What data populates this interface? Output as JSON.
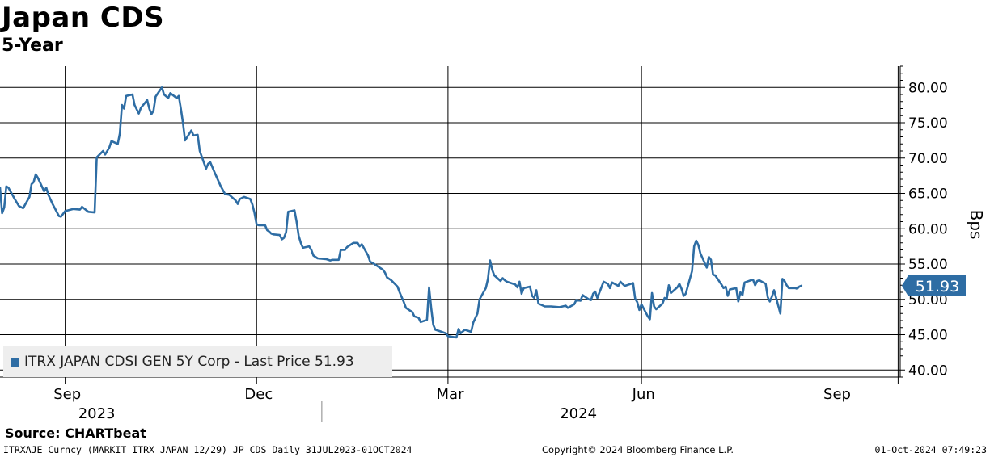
{
  "chart_data": {
    "type": "line",
    "title": "Japan CDS",
    "subtitle": "5-Year",
    "ylabel": "Bps",
    "ylim": [
      39,
      83
    ],
    "yticks": [
      40,
      45,
      50,
      55,
      60,
      65,
      70,
      75,
      80
    ],
    "ytick_labels": [
      "40.00",
      "45.00",
      "50.00",
      "55.00",
      "60.00",
      "65.00",
      "70.00",
      "75.00",
      "80.00"
    ],
    "xlim": [
      "2023-07-31",
      "2024-10-01"
    ],
    "month_ticks": [
      {
        "label": "Sep",
        "date": "2023-09-01"
      },
      {
        "label": "Dec",
        "date": "2023-12-01"
      },
      {
        "label": "Mar",
        "date": "2024-03-01"
      },
      {
        "label": "Jun",
        "date": "2024-06-01"
      },
      {
        "label": "Sep",
        "date": "2024-09-01"
      }
    ],
    "vertical_gridlines": [
      "2023-08-31",
      "2023-11-30",
      "2024-02-29",
      "2024-05-31",
      "2024-09-30"
    ],
    "year_labels": [
      {
        "label": "2023",
        "date": "2023-09-15"
      },
      {
        "label": "2024",
        "date": "2024-05-01"
      }
    ],
    "year_divider": "2023-12-31",
    "grid": true,
    "legend_position": "bottom-left",
    "last_value_label": "51.93",
    "last_value": 51.93,
    "series": [
      {
        "name": "ITRX JAPAN CDSI GEN 5Y Corp - Last Price 51.93",
        "color": "#2e6da4",
        "points": [
          [
            "2023-07-31",
            65.8
          ],
          [
            "2023-08-01",
            62.2
          ],
          [
            "2023-08-02",
            63.0
          ],
          [
            "2023-08-03",
            66.0
          ],
          [
            "2023-08-04",
            65.8
          ],
          [
            "2023-08-07",
            64.2
          ],
          [
            "2023-08-09",
            63.2
          ],
          [
            "2023-08-11",
            62.9
          ],
          [
            "2023-08-14",
            64.5
          ],
          [
            "2023-08-15",
            66.3
          ],
          [
            "2023-08-16",
            66.6
          ],
          [
            "2023-08-17",
            67.7
          ],
          [
            "2023-08-18",
            67.2
          ],
          [
            "2023-08-21",
            65.3
          ],
          [
            "2023-08-22",
            65.8
          ],
          [
            "2023-08-23",
            64.8
          ],
          [
            "2023-08-25",
            63.5
          ],
          [
            "2023-08-28",
            61.8
          ],
          [
            "2023-08-29",
            61.7
          ],
          [
            "2023-08-30",
            62.1
          ],
          [
            "2023-08-31",
            62.5
          ],
          [
            "2023-09-04",
            62.8
          ],
          [
            "2023-09-07",
            62.7
          ],
          [
            "2023-09-08",
            63.1
          ],
          [
            "2023-09-11",
            62.4
          ],
          [
            "2023-09-14",
            62.3
          ],
          [
            "2023-09-15",
            70.1
          ],
          [
            "2023-09-18",
            71.0
          ],
          [
            "2023-09-19",
            70.5
          ],
          [
            "2023-09-21",
            71.5
          ],
          [
            "2023-09-22",
            72.4
          ],
          [
            "2023-09-25",
            72.0
          ],
          [
            "2023-09-26",
            73.5
          ],
          [
            "2023-09-27",
            77.5
          ],
          [
            "2023-09-28",
            77.0
          ],
          [
            "2023-09-29",
            78.8
          ],
          [
            "2023-10-02",
            79.0
          ],
          [
            "2023-10-03",
            77.5
          ],
          [
            "2023-10-05",
            76.3
          ],
          [
            "2023-10-06",
            77.1
          ],
          [
            "2023-10-09",
            78.2
          ],
          [
            "2023-10-10",
            77.0
          ],
          [
            "2023-10-11",
            76.2
          ],
          [
            "2023-10-12",
            76.7
          ],
          [
            "2023-10-13",
            78.7
          ],
          [
            "2023-10-16",
            80.0
          ],
          [
            "2023-10-17",
            79.0
          ],
          [
            "2023-10-19",
            78.5
          ],
          [
            "2023-10-20",
            79.2
          ],
          [
            "2023-10-23",
            78.5
          ],
          [
            "2023-10-24",
            78.8
          ],
          [
            "2023-10-25",
            77.0
          ],
          [
            "2023-10-26",
            75.0
          ],
          [
            "2023-10-27",
            72.5
          ],
          [
            "2023-10-30",
            73.9
          ],
          [
            "2023-10-31",
            73.2
          ],
          [
            "2023-11-02",
            73.3
          ],
          [
            "2023-11-03",
            71.0
          ],
          [
            "2023-11-06",
            68.5
          ],
          [
            "2023-11-07",
            69.2
          ],
          [
            "2023-11-08",
            69.4
          ],
          [
            "2023-11-10",
            68.0
          ],
          [
            "2023-11-13",
            66.0
          ],
          [
            "2023-11-15",
            64.9
          ],
          [
            "2023-11-17",
            64.8
          ],
          [
            "2023-11-20",
            64.0
          ],
          [
            "2023-11-21",
            63.5
          ],
          [
            "2023-11-22",
            64.2
          ],
          [
            "2023-11-24",
            64.5
          ],
          [
            "2023-11-27",
            64.2
          ],
          [
            "2023-11-28",
            63.4
          ],
          [
            "2023-11-29",
            62.2
          ],
          [
            "2023-11-30",
            60.6
          ],
          [
            "2023-12-01",
            60.5
          ],
          [
            "2023-12-04",
            60.5
          ],
          [
            "2023-12-05",
            59.8
          ],
          [
            "2023-12-06",
            59.6
          ],
          [
            "2023-12-07",
            59.3
          ],
          [
            "2023-12-08",
            59.2
          ],
          [
            "2023-12-11",
            59.1
          ],
          [
            "2023-12-12",
            58.5
          ],
          [
            "2023-12-13",
            58.7
          ],
          [
            "2023-12-14",
            59.5
          ],
          [
            "2023-12-15",
            62.4
          ],
          [
            "2023-12-18",
            62.6
          ],
          [
            "2023-12-19",
            61.0
          ],
          [
            "2023-12-20",
            59.0
          ],
          [
            "2023-12-21",
            58.0
          ],
          [
            "2023-12-22",
            57.3
          ],
          [
            "2023-12-25",
            57.5
          ],
          [
            "2023-12-26",
            57.0
          ],
          [
            "2023-12-27",
            56.2
          ],
          [
            "2023-12-29",
            55.8
          ],
          [
            "2024-01-02",
            55.7
          ],
          [
            "2024-01-04",
            55.5
          ],
          [
            "2024-01-05",
            55.6
          ],
          [
            "2024-01-08",
            55.6
          ],
          [
            "2024-01-09",
            57.0
          ],
          [
            "2024-01-11",
            57.0
          ],
          [
            "2024-01-12",
            57.4
          ],
          [
            "2024-01-15",
            58.0
          ],
          [
            "2024-01-17",
            58.0
          ],
          [
            "2024-01-18",
            57.5
          ],
          [
            "2024-01-19",
            57.8
          ],
          [
            "2024-01-22",
            56.2
          ],
          [
            "2024-01-23",
            55.3
          ],
          [
            "2024-01-24",
            55.2
          ],
          [
            "2024-01-26",
            54.8
          ],
          [
            "2024-01-29",
            54.2
          ],
          [
            "2024-01-30",
            53.8
          ],
          [
            "2024-01-31",
            53.1
          ],
          [
            "2024-02-02",
            52.7
          ],
          [
            "2024-02-05",
            51.8
          ],
          [
            "2024-02-06",
            51.0
          ],
          [
            "2024-02-08",
            49.6
          ],
          [
            "2024-02-09",
            48.8
          ],
          [
            "2024-02-12",
            48.2
          ],
          [
            "2024-02-13",
            47.6
          ],
          [
            "2024-02-15",
            47.4
          ],
          [
            "2024-02-16",
            46.8
          ],
          [
            "2024-02-19",
            47.1
          ],
          [
            "2024-02-20",
            51.7
          ],
          [
            "2024-02-21",
            48.8
          ],
          [
            "2024-02-22",
            46.4
          ],
          [
            "2024-02-23",
            45.7
          ],
          [
            "2024-02-26",
            45.4
          ],
          [
            "2024-02-28",
            45.2
          ],
          [
            "2024-02-29",
            44.8
          ],
          [
            "2024-03-04",
            44.6
          ],
          [
            "2024-03-05",
            45.8
          ],
          [
            "2024-03-06",
            45.2
          ],
          [
            "2024-03-08",
            45.7
          ],
          [
            "2024-03-11",
            45.4
          ],
          [
            "2024-03-12",
            46.7
          ],
          [
            "2024-03-14",
            48.0
          ],
          [
            "2024-03-15",
            50.0
          ],
          [
            "2024-03-18",
            51.6
          ],
          [
            "2024-03-19",
            52.9
          ],
          [
            "2024-03-20",
            55.5
          ],
          [
            "2024-03-21",
            54.2
          ],
          [
            "2024-03-22",
            53.4
          ],
          [
            "2024-03-25",
            52.6
          ],
          [
            "2024-03-26",
            53.0
          ],
          [
            "2024-03-27",
            52.7
          ],
          [
            "2024-03-28",
            52.5
          ],
          [
            "2024-04-01",
            52.1
          ],
          [
            "2024-04-02",
            51.7
          ],
          [
            "2024-04-03",
            52.5
          ],
          [
            "2024-04-04",
            50.8
          ],
          [
            "2024-04-05",
            51.6
          ],
          [
            "2024-04-08",
            51.8
          ],
          [
            "2024-04-09",
            50.5
          ],
          [
            "2024-04-10",
            50.2
          ],
          [
            "2024-04-11",
            51.3
          ],
          [
            "2024-04-12",
            49.4
          ],
          [
            "2024-04-15",
            49.0
          ],
          [
            "2024-04-18",
            49.0
          ],
          [
            "2024-04-22",
            48.9
          ],
          [
            "2024-04-25",
            49.1
          ],
          [
            "2024-04-26",
            48.8
          ],
          [
            "2024-04-29",
            49.3
          ],
          [
            "2024-04-30",
            49.9
          ],
          [
            "2024-05-02",
            49.8
          ],
          [
            "2024-05-03",
            50.6
          ],
          [
            "2024-05-06",
            50.0
          ],
          [
            "2024-05-07",
            49.9
          ],
          [
            "2024-05-08",
            50.8
          ],
          [
            "2024-05-09",
            51.1
          ],
          [
            "2024-05-10",
            50.2
          ],
          [
            "2024-05-13",
            52.5
          ],
          [
            "2024-05-15",
            52.2
          ],
          [
            "2024-05-16",
            51.6
          ],
          [
            "2024-05-17",
            52.4
          ],
          [
            "2024-05-20",
            51.9
          ],
          [
            "2024-05-21",
            52.5
          ],
          [
            "2024-05-23",
            51.9
          ],
          [
            "2024-05-24",
            52.0
          ],
          [
            "2024-05-27",
            52.3
          ],
          [
            "2024-05-28",
            50.1
          ],
          [
            "2024-05-29",
            49.6
          ],
          [
            "2024-05-30",
            48.5
          ],
          [
            "2024-05-31",
            49.3
          ],
          [
            "2024-06-03",
            47.6
          ],
          [
            "2024-06-04",
            47.2
          ],
          [
            "2024-06-05",
            50.9
          ],
          [
            "2024-06-06",
            49.0
          ],
          [
            "2024-06-07",
            48.6
          ],
          [
            "2024-06-10",
            49.4
          ],
          [
            "2024-06-11",
            50.2
          ],
          [
            "2024-06-12",
            50.0
          ],
          [
            "2024-06-13",
            52.0
          ],
          [
            "2024-06-14",
            50.9
          ],
          [
            "2024-06-17",
            51.7
          ],
          [
            "2024-06-18",
            52.2
          ],
          [
            "2024-06-19",
            51.5
          ],
          [
            "2024-06-20",
            50.5
          ],
          [
            "2024-06-21",
            50.8
          ],
          [
            "2024-06-24",
            54.0
          ],
          [
            "2024-06-25",
            57.5
          ],
          [
            "2024-06-26",
            58.3
          ],
          [
            "2024-06-27",
            57.7
          ],
          [
            "2024-06-28",
            56.5
          ],
          [
            "2024-07-01",
            54.5
          ],
          [
            "2024-07-02",
            56.0
          ],
          [
            "2024-07-03",
            55.6
          ],
          [
            "2024-07-04",
            53.5
          ],
          [
            "2024-07-05",
            53.4
          ],
          [
            "2024-07-08",
            52.1
          ],
          [
            "2024-07-09",
            51.6
          ],
          [
            "2024-07-10",
            51.8
          ],
          [
            "2024-07-11",
            50.5
          ],
          [
            "2024-07-12",
            51.4
          ],
          [
            "2024-07-15",
            51.6
          ],
          [
            "2024-07-16",
            49.7
          ],
          [
            "2024-07-17",
            51.0
          ],
          [
            "2024-07-18",
            50.6
          ],
          [
            "2024-07-19",
            52.4
          ],
          [
            "2024-07-22",
            52.7
          ],
          [
            "2024-07-23",
            52.8
          ],
          [
            "2024-07-24",
            52.0
          ],
          [
            "2024-07-25",
            52.6
          ],
          [
            "2024-07-26",
            52.7
          ],
          [
            "2024-07-29",
            52.2
          ],
          [
            "2024-07-30",
            50.3
          ],
          [
            "2024-07-31",
            49.7
          ],
          [
            "2024-08-01",
            50.4
          ],
          [
            "2024-08-02",
            51.3
          ],
          [
            "2024-08-05",
            48.0
          ],
          [
            "2024-08-06",
            52.9
          ],
          [
            "2024-08-07",
            52.6
          ],
          [
            "2024-08-08",
            52.0
          ],
          [
            "2024-08-09",
            51.6
          ],
          [
            "2024-08-12",
            51.6
          ],
          [
            "2024-08-13",
            51.5
          ],
          [
            "2024-08-14",
            51.8
          ],
          [
            "2024-08-15",
            51.93
          ]
        ]
      }
    ]
  },
  "legend": {
    "label": "ITRX JAPAN CDSI GEN 5Y Corp - Last Price 51.93"
  },
  "source": "Source: CHARTbeat",
  "footer": {
    "left": "ITRXAJE Curncy (MARKIT ITRX JAPAN 12/29) JP CDS  Daily 31JUL2023-01OCT2024",
    "middle": "Copyright© 2024 Bloomberg Finance L.P.",
    "right": "01-Oct-2024 07:49:23"
  }
}
